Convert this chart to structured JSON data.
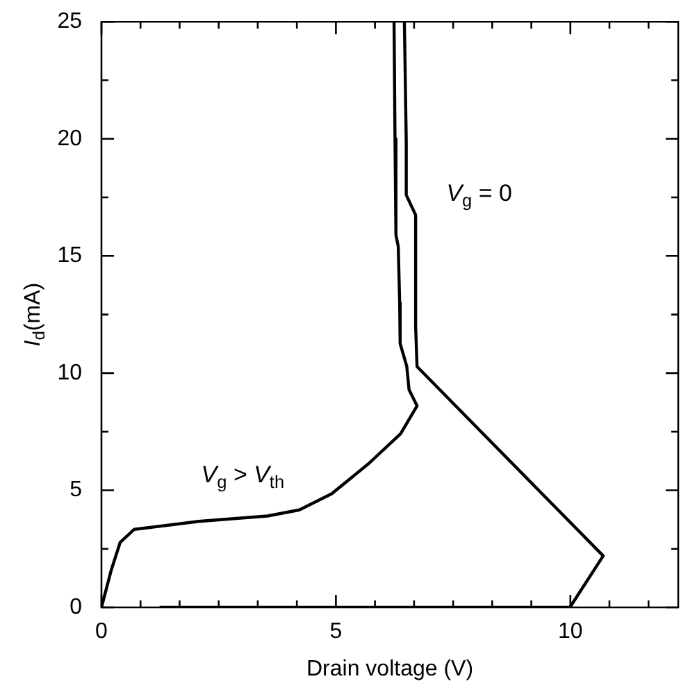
{
  "chart_data": {
    "type": "line",
    "xlabel": "Drain voltage (V)",
    "ylabel": "I$_{d}$(mA)",
    "xlim": [
      0,
      12.3
    ],
    "ylim": [
      0,
      25
    ],
    "xticks": [
      0,
      {
        "value": 0.833,
        "label": null
      },
      {
        "value": 1.667,
        "label": null
      },
      {
        "value": 2.5,
        "label": null
      },
      {
        "value": 3.333,
        "label": null
      },
      {
        "value": 4.167,
        "label": null
      },
      5,
      {
        "value": 5.833,
        "label": null
      },
      {
        "value": 6.667,
        "label": null
      },
      {
        "value": 7.5,
        "label": null
      },
      {
        "value": 8.333,
        "label": null
      },
      {
        "value": 9.167,
        "label": null
      },
      10,
      {
        "value": 10.833,
        "label": null
      },
      {
        "value": 11.667,
        "label": null
      }
    ],
    "yticks": [
      0,
      {
        "value": 2.5,
        "label": null
      },
      5,
      {
        "value": 7.5,
        "label": null
      },
      10,
      {
        "value": 12.5,
        "label": null
      },
      15,
      {
        "value": 17.5,
        "label": null
      },
      20,
      {
        "value": 22.5,
        "label": null
      },
      25
    ],
    "grid": false,
    "legend": false,
    "marker": "none",
    "line_style": "solid",
    "series": [
      {
        "color": "#000000",
        "x": [
          6.24,
          6.26,
          6.28,
          6.33,
          6.36,
          6.37,
          6.51,
          6.56,
          6.73,
          6.38,
          5.7,
          4.91,
          4.22,
          3.54,
          2.07,
          0.7,
          0.4,
          0.21,
          0
        ],
        "values": [
          25,
          20,
          15.9,
          15.4,
          13,
          11.26,
          10.3,
          9.29,
          8.6,
          7.41,
          6.14,
          4.85,
          4.16,
          3.9,
          3.67,
          3.33,
          2.78,
          1.6,
          0
        ]
      },
      {
        "color": "#000000",
        "x": [
          6.46,
          6.5,
          6.5,
          6.7,
          6.7,
          6.73,
          10.7,
          9.99,
          1.24
        ],
        "values": [
          25,
          19.9,
          17.6,
          16.75,
          12,
          10.28,
          2.2,
          0,
          0
        ]
      }
    ],
    "annotations": [
      "V$_{g}$ = 0",
      "V$_{g}$ > V$_{th}$"
    ]
  }
}
